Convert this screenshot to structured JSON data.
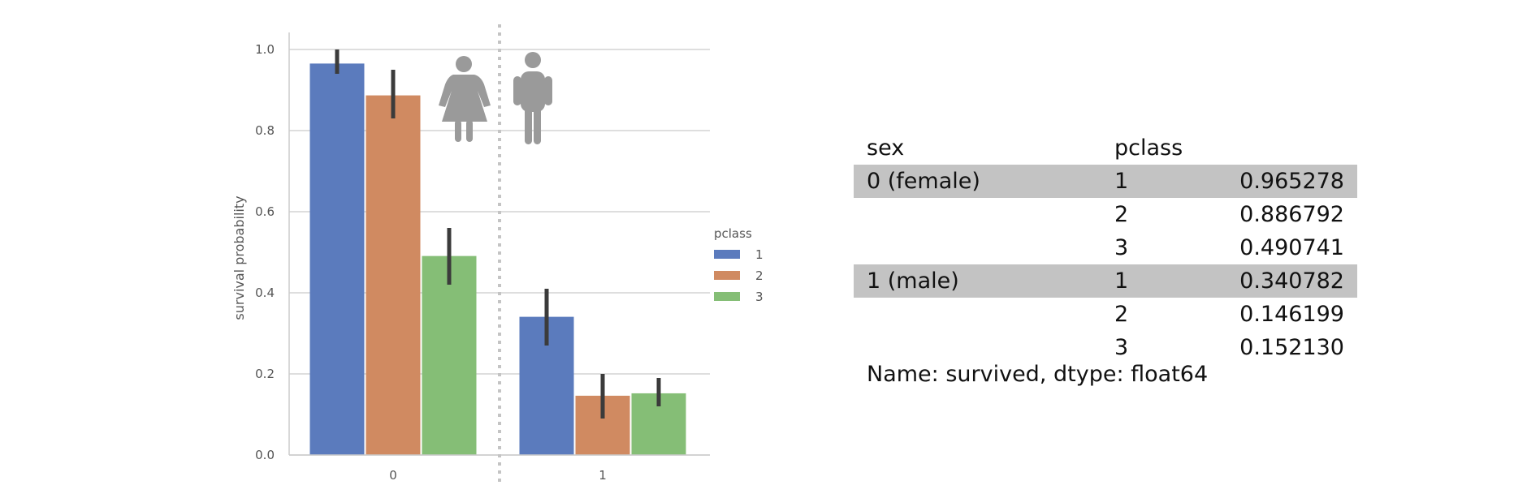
{
  "chart_data": {
    "type": "bar",
    "categories": [
      "0",
      "1"
    ],
    "series": [
      {
        "name": "1",
        "values": [
          0.965278,
          0.340782
        ],
        "err_low": [
          0.94,
          0.27
        ],
        "err_high": [
          1.0,
          0.41
        ],
        "color": "#5b7bbd"
      },
      {
        "name": "2",
        "values": [
          0.886792,
          0.146199
        ],
        "err_low": [
          0.83,
          0.09
        ],
        "err_high": [
          0.95,
          0.2
        ],
        "color": "#d08a61"
      },
      {
        "name": "3",
        "values": [
          0.490741,
          0.15213
        ],
        "err_low": [
          0.42,
          0.12
        ],
        "err_high": [
          0.56,
          0.19
        ],
        "color": "#85be76"
      }
    ],
    "xlabel": "",
    "ylabel": "survival probability",
    "ylim": [
      0,
      1.05
    ],
    "yticks": [
      "0.0",
      "0.2",
      "0.4",
      "0.6",
      "0.8",
      "1.0"
    ],
    "grid": true,
    "legend": {
      "title": "pclass",
      "position": "right"
    },
    "icons": [
      "female-person-icon",
      "male-person-icon"
    ],
    "colors": {
      "grid": "#d4d4d4",
      "divider": "#c4c4c4",
      "icon": "#9a9a9a",
      "errorbar": "#3b3b3b"
    }
  },
  "table": {
    "header": {
      "sex": "sex",
      "pclass": "pclass"
    },
    "rows": [
      {
        "sex": "0 (female)",
        "pclass": "1",
        "value": "0.965278",
        "shaded": true
      },
      {
        "sex": "",
        "pclass": "2",
        "value": "0.886792",
        "shaded": false
      },
      {
        "sex": "",
        "pclass": "3",
        "value": "0.490741",
        "shaded": false
      },
      {
        "sex": "1 (male)",
        "pclass": "1",
        "value": "0.340782",
        "shaded": true
      },
      {
        "sex": "",
        "pclass": "2",
        "value": "0.146199",
        "shaded": false
      },
      {
        "sex": "",
        "pclass": "3",
        "value": "0.152130",
        "shaded": false
      }
    ],
    "footer": "Name: survived, dtype: float64",
    "shade_color": "#c3c3c3"
  }
}
